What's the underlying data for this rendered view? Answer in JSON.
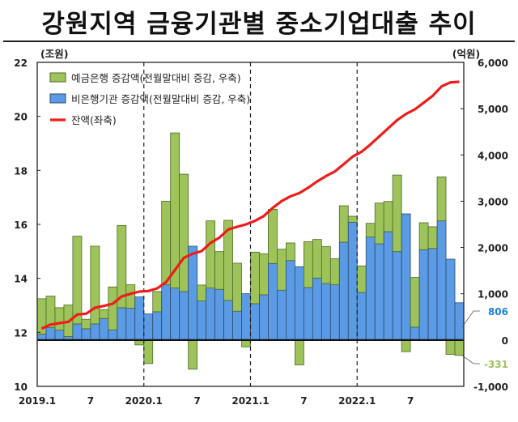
{
  "chart_data": {
    "type": "bar+line",
    "title": "강원지역 금융기관별 중소기업대출 추이",
    "left_unit": "(조원)",
    "right_unit": "(억원)",
    "left_ylim": [
      10,
      22
    ],
    "left_ticks": [
      "10",
      "12",
      "14",
      "16",
      "18",
      "20",
      "22"
    ],
    "left_tick_values": [
      10,
      12,
      14,
      16,
      18,
      20,
      22
    ],
    "right_ylim": [
      -1000,
      6000
    ],
    "right_ticks": [
      "-1,000",
      "0",
      "1,000",
      "2,000",
      "3,000",
      "4,000",
      "5,000",
      "6,000"
    ],
    "right_tick_values": [
      -1000,
      0,
      1000,
      2000,
      3000,
      4000,
      5000,
      6000
    ],
    "x_tick_labels": [
      {
        "index": 0,
        "label": "2019.1"
      },
      {
        "index": 6,
        "label": "7"
      },
      {
        "index": 12,
        "label": "2020.1"
      },
      {
        "index": 18,
        "label": "7"
      },
      {
        "index": 24,
        "label": "2021.1"
      },
      {
        "index": 30,
        "label": "7"
      },
      {
        "index": 36,
        "label": "2022.1"
      },
      {
        "index": 42,
        "label": "7"
      }
    ],
    "year_dividers": [
      12,
      24,
      36
    ],
    "months": 48,
    "series": [
      {
        "name": "예금은행 증감액(전월말대비 증감, 우축)",
        "type": "bar",
        "axis": "right",
        "color": "#9dc35a",
        "values": [
          764,
          676,
          484,
          682,
          1894,
          204,
          1678,
          192,
          927,
          1777,
          507,
          -105,
          -507,
          437,
          1806,
          3351,
          2535,
          -629,
          344,
          1451,
          815,
          1730,
          1037,
          -146,
          1113,
          886,
          1171,
          886,
          379,
          -536,
          991,
          834,
          798,
          565,
          787,
          128,
          572,
          297,
          880,
          652,
          1655,
          -251,
          1072,
          583,
          467,
          950,
          -309,
          -331
        ]
      },
      {
        "name": "비은행기관 증감액(전월말대비 증감, 우축)",
        "type": "bar",
        "axis": "right",
        "color": "#5b9be6",
        "values": [
          128,
          274,
          216,
          76,
          350,
          245,
          350,
          466,
          221,
          700,
          688,
          932,
          565,
          612,
          1195,
          1125,
          1049,
          2028,
          845,
          1125,
          1096,
          857,
          624,
          1002,
          787,
          979,
          1655,
          1078,
          1719,
          1585,
          1136,
          1340,
          1224,
          1195,
          2115,
          2547,
          1031,
          2226,
          2080,
          2343,
          1911,
          2727,
          280,
          1952,
          1981,
          2576,
          1748,
          806
        ]
      },
      {
        "name": "잔액(좌축)",
        "type": "line",
        "axis": "left",
        "color": "#ee1c1c",
        "values": [
          12.14,
          12.29,
          12.34,
          12.39,
          12.66,
          12.69,
          12.91,
          12.98,
          13.06,
          13.33,
          13.43,
          13.51,
          13.53,
          13.63,
          13.86,
          14.31,
          14.76,
          14.91,
          15.01,
          15.31,
          15.51,
          15.81,
          15.91,
          16.0,
          16.13,
          16.31,
          16.61,
          16.86,
          17.04,
          17.16,
          17.36,
          17.59,
          17.79,
          17.96,
          18.23,
          18.51,
          18.69,
          18.96,
          19.26,
          19.56,
          19.86,
          20.09,
          20.26,
          20.51,
          20.76,
          21.11,
          21.26,
          21.28
        ]
      }
    ],
    "annotations": [
      {
        "text": "806",
        "series": 1,
        "index": 47,
        "color": "#1f7fe0"
      },
      {
        "text": "-331",
        "series": 0,
        "index": 47,
        "color": "#9dc35a"
      }
    ],
    "legend_position": "top-left"
  }
}
